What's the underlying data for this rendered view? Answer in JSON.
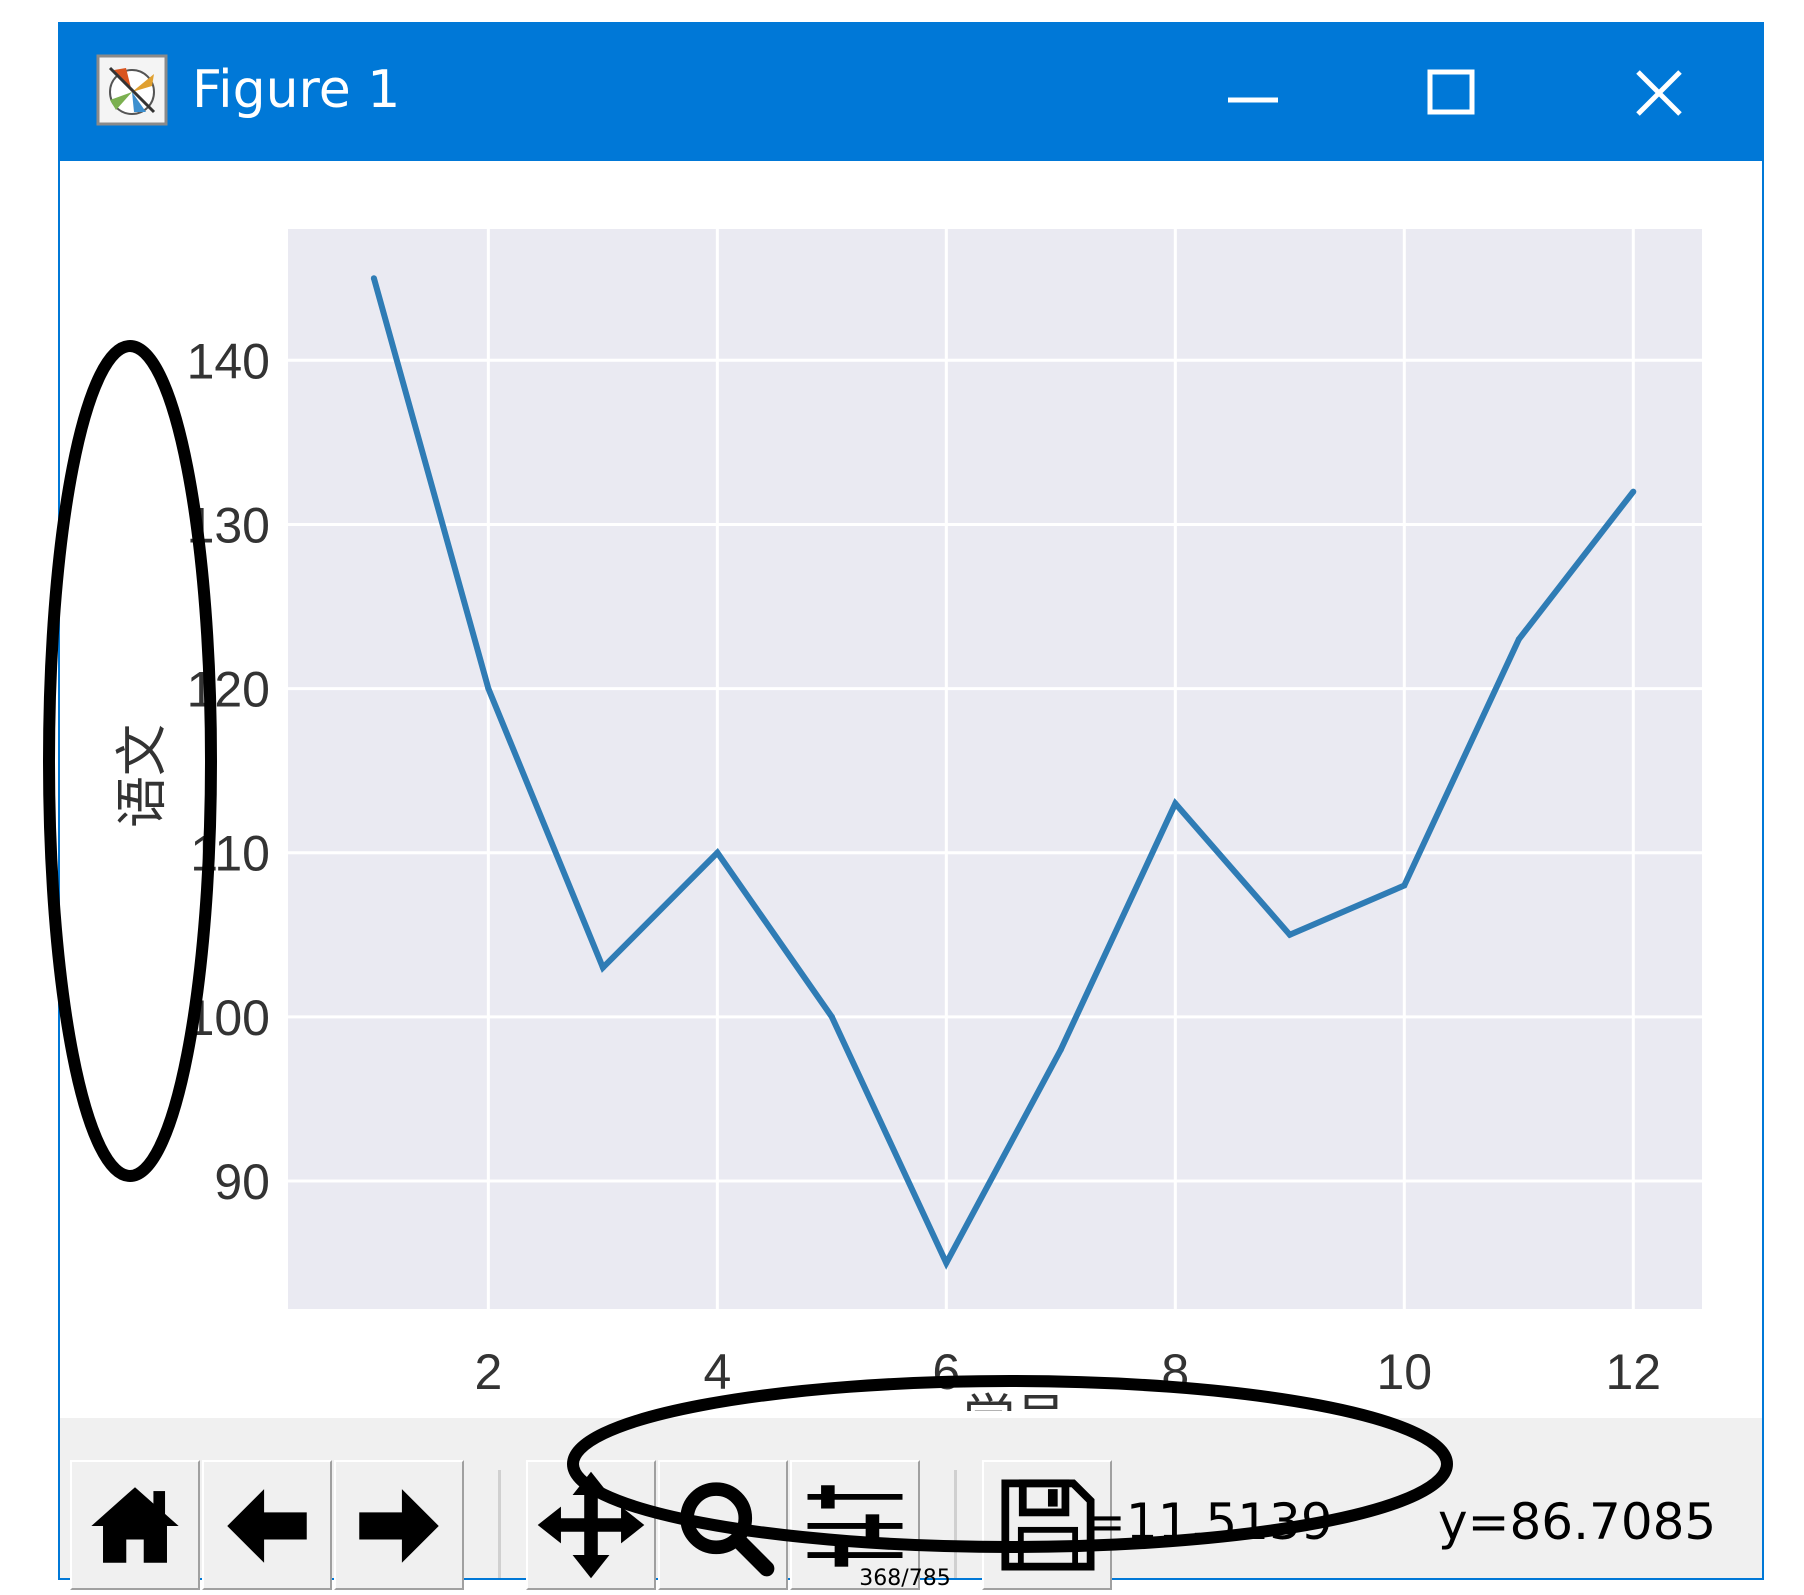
{
  "window": {
    "title": "Figure 1",
    "titlebar_color": "#0078d7"
  },
  "titlebar_buttons": {
    "minimize_icon": "minimize-icon",
    "maximize_icon": "maximize-icon",
    "close_icon": "close-icon"
  },
  "toolbar": {
    "buttons": [
      {
        "name": "home",
        "icon": "home-icon"
      },
      {
        "name": "back",
        "icon": "arrow-left-icon"
      },
      {
        "name": "forward",
        "icon": "arrow-right-icon"
      },
      {
        "name": "pan",
        "icon": "move-icon"
      },
      {
        "name": "zoom",
        "icon": "magnifier-icon"
      },
      {
        "name": "configure-subplots",
        "icon": "sliders-icon"
      },
      {
        "name": "save",
        "icon": "floppy-disk-icon"
      }
    ],
    "coord_x": "=11.5139",
    "coord_y": "y=86.7085"
  },
  "chart_data": {
    "type": "line",
    "x": [
      1,
      2,
      3,
      4,
      5,
      6,
      7,
      8,
      9,
      10,
      11,
      12
    ],
    "series": [
      {
        "values": [
          145,
          120,
          103,
          110,
          100,
          85,
          98,
          113,
          105,
          108,
          123,
          132
        ],
        "color": "#2f7cb5"
      }
    ],
    "ylabel": "语文",
    "xlabel": "学号",
    "xticks": [
      2,
      4,
      6,
      8,
      10,
      12
    ],
    "yticks": [
      90,
      100,
      110,
      120,
      130,
      140
    ],
    "xlim": [
      0.25,
      12.6
    ],
    "ylim": [
      82.2,
      148
    ],
    "grid": true,
    "plot_background": "#eaeaf2",
    "grid_color": "#ffffff"
  },
  "page_counter": "368/785"
}
